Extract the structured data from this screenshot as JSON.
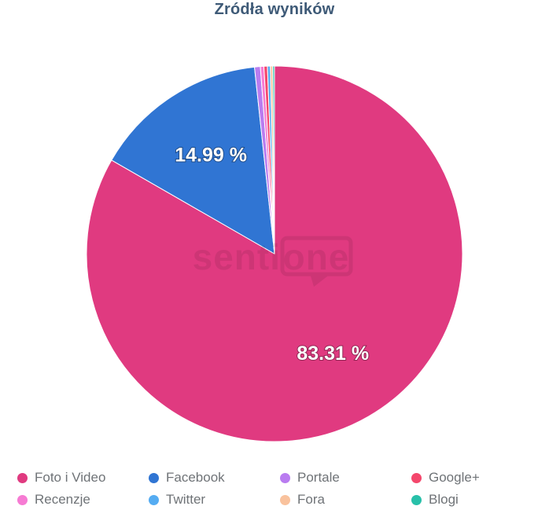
{
  "title": "Zródła wyników",
  "chart_data": {
    "type": "pie",
    "title": "Zródła wyników",
    "unit": "%",
    "start_angle_deg": 0,
    "direction": "clockwise",
    "legend_position": "bottom",
    "slices": [
      {
        "name": "Foto i Video",
        "value": 83.31,
        "color": "#e03a80",
        "label": "83.31 %"
      },
      {
        "name": "Facebook",
        "value": 14.99,
        "color": "#3075d3",
        "label": "14.99 %"
      },
      {
        "name": "Portale",
        "value": 0.5,
        "color": "#b97cf0",
        "label": ""
      },
      {
        "name": "Recenzje",
        "value": 0.3,
        "color": "#f67bd3",
        "label": ""
      },
      {
        "name": "Google+",
        "value": 0.3,
        "color": "#f4476c",
        "label": ""
      },
      {
        "name": "Twitter",
        "value": 0.25,
        "color": "#55acf2",
        "label": ""
      },
      {
        "name": "Fora",
        "value": 0.2,
        "color": "#f9c29d",
        "label": ""
      },
      {
        "name": "Blogi",
        "value": 0.15,
        "color": "#28c0a9",
        "label": ""
      }
    ],
    "legend_items": [
      "Foto i Video",
      "Facebook",
      "Portale",
      "Google+",
      "Recenzje",
      "Twitter",
      "Fora",
      "Blogi"
    ]
  },
  "watermark": {
    "text_left": "senti",
    "text_boxed": "one"
  },
  "colors": {
    "title": "#3e5a77",
    "legend_text": "#6f7377",
    "background": "#ffffff"
  }
}
